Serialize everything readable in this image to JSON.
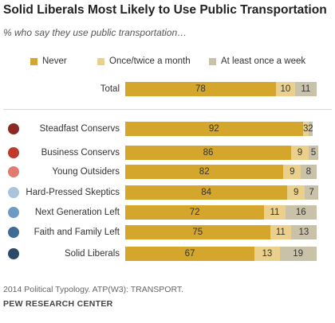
{
  "title": "Solid Liberals Most Likely to Use Public Transportation",
  "subtitle": "% who say they use public transportation…",
  "source": "2014 Political Typology. ATP(W3): TRANSPORT.",
  "org": "PEW RESEARCH CENTER",
  "colors": {
    "never": "#d4a72c",
    "once": "#ead08a",
    "week": "#c9c1a8"
  },
  "chart_data": {
    "type": "bar",
    "orientation": "horizontal",
    "stacked": true,
    "categories": [
      "Total",
      "Steadfast Conservs",
      "Business Conservs",
      "Young Outsiders",
      "Hard-Pressed Skeptics",
      "Next Generation Left",
      "Faith and Family Left",
      "Solid Liberals"
    ],
    "group_colors": [
      null,
      "#8b2a23",
      "#c0392b",
      "#e07b70",
      "#a9c4dd",
      "#6f9bc2",
      "#3f6c94",
      "#2c4a68"
    ],
    "series": [
      {
        "name": "Never",
        "values": [
          78,
          92,
          86,
          82,
          84,
          72,
          75,
          67
        ]
      },
      {
        "name": "Once/twice a month",
        "values": [
          10,
          3,
          9,
          9,
          9,
          11,
          11,
          13
        ]
      },
      {
        "name": "At least once a week",
        "values": [
          11,
          2,
          5,
          8,
          7,
          16,
          13,
          19
        ]
      }
    ],
    "xlim": [
      0,
      100
    ],
    "legend": "top",
    "grid": false
  }
}
